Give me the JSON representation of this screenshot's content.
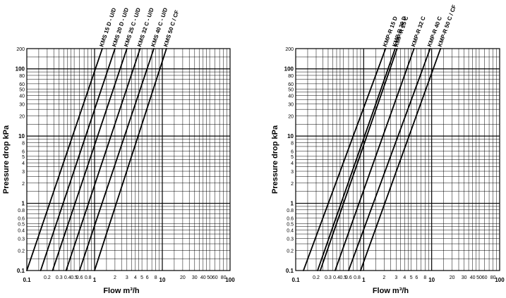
{
  "chart_data": [
    {
      "type": "line",
      "xscale": "log",
      "yscale": "log",
      "xlim": [
        0.1,
        100
      ],
      "ylim": [
        0.1,
        200
      ],
      "grid": true,
      "xlabel": "Flow m³/h",
      "ylabel": "Pressure drop kPa",
      "xticks": [
        "0.1",
        "0.2",
        "0.3",
        "0.4",
        "0.5",
        "0.6",
        "0.8",
        "1",
        "2",
        "3",
        "4",
        "5",
        "6",
        "8",
        "10",
        "20",
        "30",
        "40",
        "50",
        "60",
        "80",
        "100"
      ],
      "yticks": [
        "0.1",
        "0.2",
        "0.3",
        "0.4",
        "0.5",
        "0.6",
        "0.8",
        "1",
        "2",
        "3",
        "4",
        "5",
        "6",
        "8",
        "10",
        "20",
        "30",
        "40",
        "50",
        "60",
        "80",
        "100",
        "200"
      ],
      "series": [
        {
          "name": "KMS 15 D - U/D",
          "x": [
            0.1,
            1.3
          ],
          "y": [
            0.1,
            200
          ]
        },
        {
          "name": "KMS 20 D - U/D",
          "x": [
            0.16,
            2.0
          ],
          "y": [
            0.1,
            200
          ]
        },
        {
          "name": "KMS 25 C - U/D",
          "x": [
            0.24,
            3.0
          ],
          "y": [
            0.1,
            200
          ]
        },
        {
          "name": "KMS 32 C - U/D",
          "x": [
            0.38,
            4.7
          ],
          "y": [
            0.1,
            200
          ]
        },
        {
          "name": "KMS 40 C - U/D",
          "x": [
            0.6,
            7.5
          ],
          "y": [
            0.1,
            200
          ]
        },
        {
          "name": "KMS 50 C / CF",
          "x": [
            1.0,
            11.5
          ],
          "y": [
            0.1,
            200
          ]
        }
      ]
    },
    {
      "type": "line",
      "xscale": "log",
      "yscale": "log",
      "xlim": [
        0.1,
        100
      ],
      "ylim": [
        0.1,
        200
      ],
      "grid": true,
      "xlabel": "Flow m³/h",
      "ylabel": "Pressure drop kPa",
      "xticks": [
        "0.1",
        "0.2",
        "0.3",
        "0.4",
        "0.5",
        "0.6",
        "0.8",
        "1",
        "2",
        "3",
        "4",
        "5",
        "6",
        "8",
        "10",
        "20",
        "30",
        "40",
        "50",
        "60",
        "80",
        "100"
      ],
      "yticks": [
        "0.1",
        "0.2",
        "0.3",
        "0.4",
        "0.5",
        "0.6",
        "0.8",
        "1",
        "2",
        "3",
        "4",
        "5",
        "6",
        "8",
        "10",
        "20",
        "30",
        "40",
        "50",
        "60",
        "80",
        "100",
        "200"
      ],
      "series": [
        {
          "name": "KMP-R 15 D",
          "x": [
            0.13,
            2.1
          ],
          "y": [
            0.1,
            200
          ]
        },
        {
          "name": "KMP-R 20 D",
          "x": [
            0.21,
            2.9
          ],
          "y": [
            0.1,
            200
          ]
        },
        {
          "name": "KMP-R 25 C",
          "x": [
            0.23,
            3.1
          ],
          "y": [
            0.1,
            200
          ]
        },
        {
          "name": "KMP-R 32 C",
          "x": [
            0.38,
            5.5
          ],
          "y": [
            0.1,
            200
          ]
        },
        {
          "name": "KMP-R 40 C",
          "x": [
            0.6,
            9.5
          ],
          "y": [
            0.1,
            200
          ]
        },
        {
          "name": "KMP-R 50 C / CF",
          "x": [
            0.9,
            13.5
          ],
          "y": [
            0.1,
            200
          ]
        }
      ]
    }
  ]
}
